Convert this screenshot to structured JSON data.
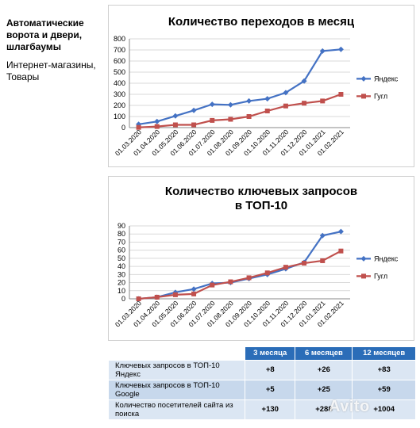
{
  "sidebar": {
    "title": "Автоматические ворота и двери, шлагбаумы",
    "subtitle": "Интернет-магазины, Товары"
  },
  "chart_data": [
    {
      "type": "line",
      "title": "Количество переходов в месяц",
      "categories": [
        "01.03.2020",
        "01.04.2020",
        "01.05.2020",
        "01.06.2020",
        "01.07.2020",
        "01.08.2020",
        "01.09.2020",
        "01.10.2020",
        "01.11.2020",
        "01.12.2020",
        "01.01.2021",
        "01.02.2021"
      ],
      "series": [
        {
          "name": "Яндекс",
          "color": "#4472c4",
          "marker": "diamond",
          "values": [
            30,
            55,
            105,
            155,
            210,
            205,
            240,
            260,
            315,
            420,
            690,
            705
          ]
        },
        {
          "name": "Гугл",
          "color": "#c0504d",
          "marker": "square",
          "values": [
            2,
            10,
            25,
            25,
            65,
            75,
            100,
            150,
            195,
            220,
            240,
            300
          ]
        }
      ],
      "ylim": [
        0,
        800
      ],
      "yticks": [
        0,
        100,
        200,
        300,
        400,
        500,
        600,
        700,
        800
      ],
      "grid": true,
      "legend": "right"
    },
    {
      "type": "line",
      "title": "Количество ключевых запросов в ТОП-10",
      "categories": [
        "01.03.2020",
        "01.04.2020",
        "01.05.2020",
        "01.06.2020",
        "01.07.2020",
        "01.08.2020",
        "01.09.2020",
        "01.10.2020",
        "01.11.2020",
        "01.12.2020",
        "01.01.2021",
        "01.02.2021"
      ],
      "series": [
        {
          "name": "Яндекс",
          "color": "#4472c4",
          "marker": "diamond",
          "values": [
            0,
            2,
            8,
            12,
            19,
            20,
            25,
            30,
            37,
            45,
            78,
            83
          ]
        },
        {
          "name": "Гугл",
          "color": "#c0504d",
          "marker": "square",
          "values": [
            0,
            2,
            5,
            6,
            17,
            21,
            26,
            32,
            39,
            44,
            47,
            59
          ]
        }
      ],
      "ylim": [
        0,
        90
      ],
      "yticks": [
        0,
        10,
        20,
        30,
        40,
        50,
        60,
        70,
        80,
        90
      ],
      "grid": true,
      "legend": "right"
    }
  ],
  "table": {
    "headers": [
      "",
      "3 месяца",
      "6 месяцев",
      "12 месяцев"
    ],
    "rows": [
      {
        "label": "Ключевых запросов в ТОП-10 Яндекс",
        "values": [
          "+8",
          "+26",
          "+83"
        ]
      },
      {
        "label": "Ключевых запросов в ТОП-10 Google",
        "values": [
          "+5",
          "+25",
          "+59"
        ]
      },
      {
        "label": "Количество посетителей сайта из поиска",
        "values": [
          "+130",
          "+288",
          "+1004"
        ]
      }
    ]
  },
  "watermark": "Avito"
}
